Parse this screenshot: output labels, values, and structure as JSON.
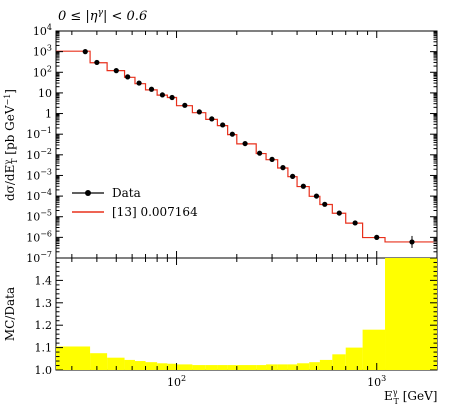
{
  "chart_data": [
    {
      "type": "line",
      "panel": "main",
      "title": "0 ≤ |η^γ| < 0.6",
      "xlabel": "E_T^γ [GeV]",
      "ylabel": "dσ/dE_T^γ [pb GeV^-1]",
      "x_scale": "log",
      "y_scale": "log",
      "xlim": [
        25,
        2000
      ],
      "ylim": [
        1e-07,
        10000.0
      ],
      "grid": false,
      "legend_placement": "bottom-left",
      "colors": {
        "data": "#000000",
        "mc": "#e8301c"
      },
      "y_tick_labels": [
        "10^4",
        "10^3",
        "10^2",
        "10",
        "1",
        "10^-1",
        "10^-2",
        "10^-3",
        "10^-4",
        "10^-5",
        "10^-6",
        "10^-7"
      ],
      "x_tick_labels": [
        "10^2",
        "10^3"
      ],
      "series": [
        {
          "name": "Data",
          "style": "points",
          "x": [
            35,
            40,
            50,
            57,
            65,
            75,
            85,
            95,
            110,
            130,
            150,
            170,
            190,
            220,
            260,
            300,
            340,
            380,
            430,
            500,
            550,
            650,
            780,
            1000,
            1500
          ],
          "y": [
            1000,
            300,
            120,
            60,
            30,
            15,
            8,
            6,
            2.5,
            1.2,
            0.55,
            0.28,
            0.1,
            0.035,
            0.012,
            0.006,
            0.0024,
            0.0009,
            0.0003,
            0.0001,
            4e-05,
            1.5e-05,
            5e-06,
            1e-06,
            6e-07
          ]
        },
        {
          "name": "[13] 0.007164",
          "style": "step",
          "edges": [
            25,
            37,
            45,
            55,
            62,
            70,
            80,
            90,
            100,
            120,
            140,
            160,
            180,
            200,
            250,
            280,
            320,
            360,
            400,
            460,
            520,
            600,
            700,
            850,
            1100,
            2000
          ],
          "values": [
            1050,
            290,
            120,
            57,
            28,
            14,
            7.8,
            6,
            2.4,
            1.1,
            0.52,
            0.26,
            0.095,
            0.034,
            0.0115,
            0.0058,
            0.0023,
            0.00087,
            0.00029,
            9.75e-05,
            3.9e-05,
            1.48e-05,
            4.9e-06,
            9.8e-07,
            6e-07
          ]
        }
      ]
    },
    {
      "type": "bar",
      "panel": "ratio",
      "ylabel": "MC/Data",
      "xlabel": "E_T^γ [GeV]",
      "x_scale": "log",
      "xlim": [
        25,
        2000
      ],
      "ylim": [
        1.0,
        1.5
      ],
      "y_tick_labels": [
        "1.0",
        "1.1",
        "1.2",
        "1.3",
        "1.4"
      ],
      "x_tick_labels": [
        "10^2",
        "10^3"
      ],
      "colors": {
        "band": "#ffff00"
      },
      "edges": [
        25,
        37,
        45,
        55,
        62,
        70,
        80,
        90,
        100,
        120,
        140,
        160,
        180,
        200,
        250,
        280,
        320,
        360,
        400,
        460,
        520,
        600,
        700,
        850,
        1100,
        2000
      ],
      "values": [
        1.105,
        1.075,
        1.055,
        1.045,
        1.04,
        1.035,
        1.03,
        1.028,
        1.025,
        1.022,
        1.022,
        1.022,
        1.022,
        1.022,
        1.022,
        1.025,
        1.025,
        1.025,
        1.03,
        1.035,
        1.045,
        1.07,
        1.1,
        1.18,
        1.5
      ]
    }
  ]
}
